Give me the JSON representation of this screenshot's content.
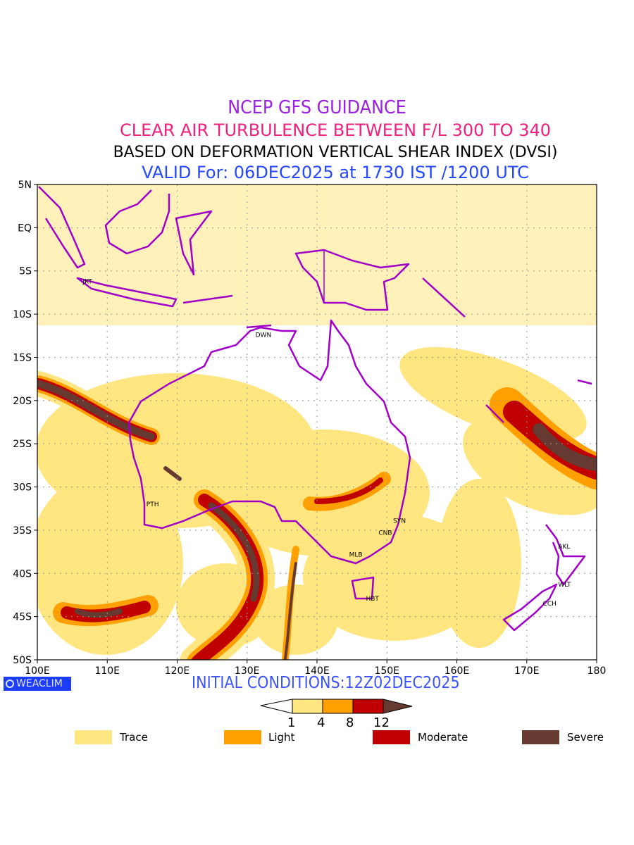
{
  "header": {
    "line1": "NCEP GFS GUIDANCE",
    "line2": "CLEAR AIR TURBULENCE BETWEEN F/L 300 TO 340",
    "line3": "BASED ON DEFORMATION VERTICAL SHEAR INDEX (DVSI)",
    "line4": "VALID For: 06DEC2025 at 1730 IST /1200 UTC"
  },
  "map": {
    "lon_ticks": [
      {
        "lon": 100,
        "label": "100E"
      },
      {
        "lon": 110,
        "label": "110E"
      },
      {
        "lon": 120,
        "label": "120E"
      },
      {
        "lon": 130,
        "label": "130E"
      },
      {
        "lon": 140,
        "label": "140E"
      },
      {
        "lon": 150,
        "label": "150E"
      },
      {
        "lon": 160,
        "label": "160E"
      },
      {
        "lon": 170,
        "label": "170E"
      },
      {
        "lon": 180,
        "label": "180"
      }
    ],
    "lat_ticks": [
      {
        "lat": 5,
        "label": "5N"
      },
      {
        "lat": 0,
        "label": "EQ"
      },
      {
        "lat": -5,
        "label": "5S"
      },
      {
        "lat": -10,
        "label": "10S"
      },
      {
        "lat": -15,
        "label": "15S"
      },
      {
        "lat": -20,
        "label": "20S"
      },
      {
        "lat": -25,
        "label": "25S"
      },
      {
        "lat": -30,
        "label": "30S"
      },
      {
        "lat": -35,
        "label": "35S"
      },
      {
        "lat": -40,
        "label": "40S"
      },
      {
        "lat": -45,
        "label": "45S"
      },
      {
        "lat": -50,
        "label": "50S"
      }
    ],
    "lon_range": [
      100,
      180
    ],
    "lat_range": [
      -50,
      5
    ],
    "cities": [
      {
        "code": "JKT",
        "lon": 106.8,
        "lat": -6.2
      },
      {
        "code": "DWN",
        "lon": 131.5,
        "lat": -12.4
      },
      {
        "code": "PTH",
        "lon": 115.9,
        "lat": -32.0
      },
      {
        "code": "SYN",
        "lon": 151.2,
        "lat": -33.9
      },
      {
        "code": "CNB",
        "lon": 149.1,
        "lat": -35.3
      },
      {
        "code": "MLB",
        "lon": 144.9,
        "lat": -37.8
      },
      {
        "code": "HBT",
        "lon": 147.3,
        "lat": -42.9
      },
      {
        "code": "AKL",
        "lon": 174.8,
        "lat": -36.9
      },
      {
        "code": "WLT",
        "lon": 174.8,
        "lat": -41.3
      },
      {
        "code": "CCH",
        "lon": 172.6,
        "lat": -43.5
      }
    ]
  },
  "footer": {
    "logo": "WEACLIM",
    "initial_conditions": "INITIAL CONDITIONS:12Z02DEC2025"
  },
  "colorbar": {
    "levels": [
      "1",
      "4",
      "8",
      "12"
    ],
    "colors": {
      "trace": "#ffe680",
      "light": "#ffa000",
      "moderate": "#c00000",
      "severe": "#663a30",
      "coast": "#a000c8"
    }
  },
  "legend": [
    {
      "label": "Trace",
      "color": "#ffe680"
    },
    {
      "label": "Light",
      "color": "#ffa000"
    },
    {
      "label": "Moderate",
      "color": "#c00000"
    },
    {
      "label": "Severe",
      "color": "#663a30"
    }
  ]
}
